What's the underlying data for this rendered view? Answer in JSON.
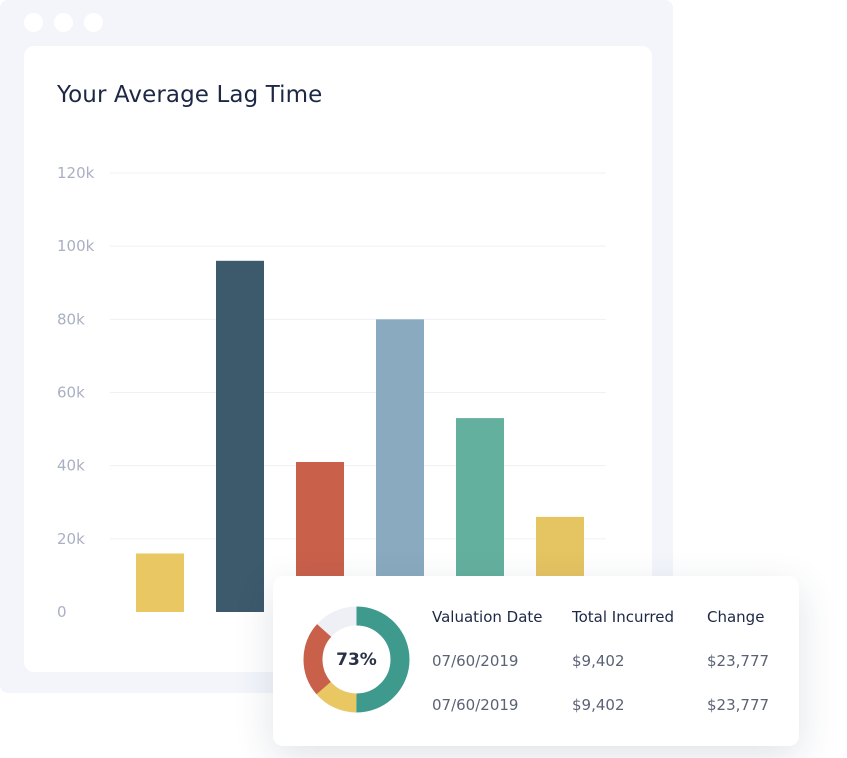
{
  "chart_data": {
    "type": "bar",
    "title": "Your Average Lag Time",
    "categories": [
      "",
      "",
      "",
      "",
      "",
      ""
    ],
    "values": [
      16000,
      96000,
      41000,
      80000,
      53000,
      26000
    ],
    "colors": [
      "#e9c763",
      "#3d596c",
      "#c9604a",
      "#8aaabf",
      "#64b09e",
      "#e5c462"
    ],
    "yticks": [
      "0",
      "20k",
      "40k",
      "60k",
      "80k",
      "100k",
      "120k"
    ],
    "ylim": [
      0,
      120000
    ],
    "grid": true,
    "xlabel": "",
    "ylabel": ""
  },
  "summary": {
    "percent": 73,
    "percent_label": "73%",
    "columns": [
      "Valuation Date",
      "Total Incurred",
      "Change"
    ],
    "rows": [
      [
        "07/60/2019",
        "$9,402",
        "$23,777"
      ],
      [
        "07/60/2019",
        "$9,402",
        "$23,777"
      ]
    ],
    "donut_colors": {
      "main": "#3d9a8c",
      "yellow": "#e9c763",
      "red": "#c9604a",
      "track": "#eef0f5"
    }
  }
}
